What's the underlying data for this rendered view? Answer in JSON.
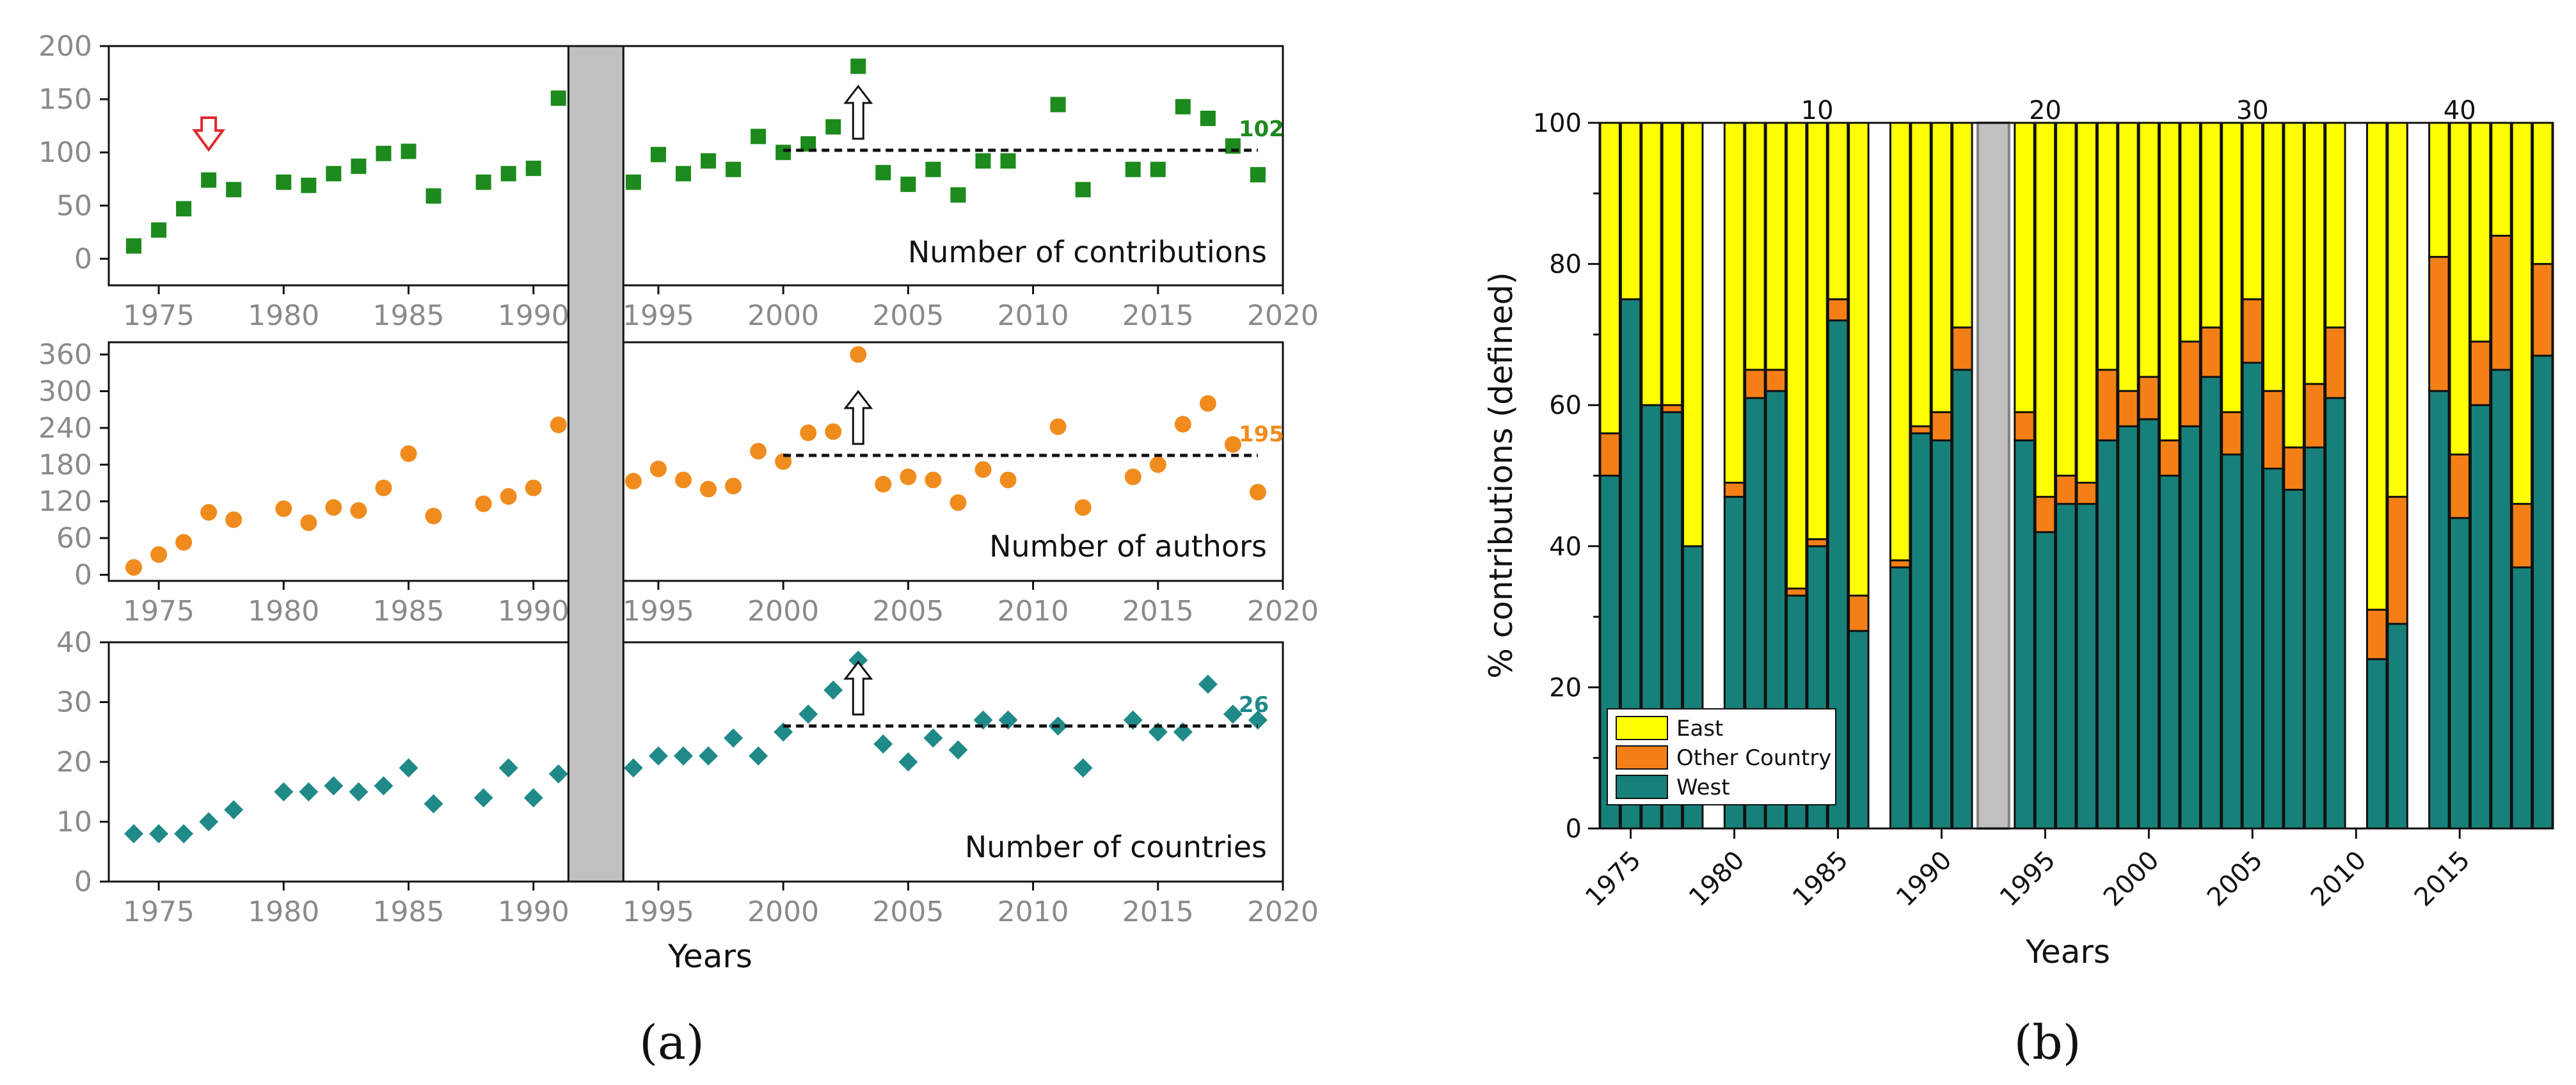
{
  "chart_data": [
    {
      "id": "a",
      "type": "scatter",
      "label": "(a)",
      "xlabel": "Years",
      "xlim": [
        1973,
        2020
      ],
      "xticks": [
        1975,
        1980,
        1985,
        1990,
        1995,
        2000,
        2005,
        2010,
        2015,
        2020
      ],
      "gap_band": [
        1991.4,
        1993.6
      ],
      "panels": [
        {
          "title": "Number of contributions",
          "ylim": [
            -25,
            200
          ],
          "yticks": [
            0,
            50,
            100,
            150,
            200
          ],
          "color": "#1c8a1c",
          "marker": "square",
          "reference": {
            "value": 102,
            "label": "102",
            "x_start": 2000,
            "x_end": 2019
          },
          "arrow_year": 2003,
          "down_arrow_year": 1977,
          "x": [
            1974,
            1975,
            1976,
            1977,
            1978,
            1980,
            1981,
            1982,
            1983,
            1984,
            1985,
            1986,
            1988,
            1989,
            1990,
            1991,
            1994,
            1995,
            1996,
            1997,
            1998,
            1999,
            2000,
            2001,
            2002,
            2003,
            2004,
            2005,
            2006,
            2007,
            2008,
            2009,
            2011,
            2012,
            2014,
            2015,
            2016,
            2017,
            2018,
            2019
          ],
          "y": [
            12,
            27,
            47,
            74,
            65,
            72,
            69,
            80,
            87,
            99,
            101,
            59,
            72,
            80,
            85,
            151,
            72,
            98,
            80,
            92,
            84,
            115,
            100,
            108,
            124,
            181,
            81,
            70,
            84,
            60,
            92,
            92,
            145,
            65,
            84,
            84,
            143,
            132,
            106,
            79
          ]
        },
        {
          "title": "Number of authors",
          "ylim": [
            -10,
            380
          ],
          "yticks": [
            0,
            60,
            120,
            180,
            240,
            300,
            360
          ],
          "color": "#f08c1e",
          "marker": "circle",
          "reference": {
            "value": 195,
            "label": "195",
            "x_start": 2000,
            "x_end": 2019
          },
          "arrow_year": 2003,
          "x": [
            1974,
            1975,
            1976,
            1977,
            1978,
            1980,
            1981,
            1982,
            1983,
            1984,
            1985,
            1986,
            1988,
            1989,
            1990,
            1991,
            1994,
            1995,
            1996,
            1997,
            1998,
            1999,
            2000,
            2001,
            2002,
            2003,
            2004,
            2005,
            2006,
            2007,
            2008,
            2009,
            2011,
            2012,
            2014,
            2015,
            2016,
            2017,
            2018,
            2019
          ],
          "y": [
            12,
            33,
            53,
            102,
            90,
            108,
            85,
            110,
            105,
            142,
            198,
            96,
            116,
            128,
            142,
            245,
            153,
            173,
            155,
            140,
            145,
            202,
            185,
            232,
            234,
            360,
            148,
            160,
            155,
            118,
            172,
            155,
            242,
            110,
            160,
            180,
            246,
            280,
            213,
            135
          ]
        },
        {
          "title": "Number of countries",
          "ylim": [
            0,
            40
          ],
          "yticks": [
            0,
            10,
            20,
            30,
            40
          ],
          "color": "#1f8a88",
          "marker": "diamond",
          "reference": {
            "value": 26,
            "label": "26",
            "x_start": 2000,
            "x_end": 2019
          },
          "arrow_year": 2003,
          "x": [
            1974,
            1975,
            1976,
            1977,
            1978,
            1980,
            1981,
            1982,
            1983,
            1984,
            1985,
            1986,
            1988,
            1989,
            1990,
            1991,
            1994,
            1995,
            1996,
            1997,
            1998,
            1999,
            2000,
            2001,
            2002,
            2003,
            2004,
            2005,
            2006,
            2007,
            2008,
            2009,
            2011,
            2012,
            2014,
            2015,
            2016,
            2017,
            2018,
            2019
          ],
          "y": [
            8,
            8,
            8,
            10,
            12,
            15,
            15,
            16,
            15,
            16,
            19,
            13,
            14,
            19,
            14,
            18,
            19,
            21,
            21,
            21,
            24,
            21,
            25,
            28,
            32,
            37,
            23,
            20,
            24,
            22,
            27,
            27,
            26,
            19,
            27,
            25,
            25,
            33,
            28,
            27
          ]
        }
      ]
    },
    {
      "id": "b",
      "type": "bar",
      "stacked": true,
      "label": "(b)",
      "xlabel": "Years",
      "ylabel": "% contributions (defined)",
      "ylim": [
        0,
        100
      ],
      "yticks": [
        0,
        20,
        40,
        60,
        80,
        100
      ],
      "xlim": [
        1973.5,
        2019.5
      ],
      "xticks": [
        1975,
        1980,
        1985,
        1990,
        1995,
        2000,
        2005,
        2010,
        2015
      ],
      "top_ticks": [
        {
          "label": "10",
          "year": 1984
        },
        {
          "label": "20",
          "year": 1995
        },
        {
          "label": "30",
          "year": 2005
        },
        {
          "label": "40",
          "year": 2015
        }
      ],
      "gap_band": [
        1991.5,
        1993.5
      ],
      "legend": {
        "position": "bottom-left",
        "entries": [
          "East",
          "Other Country",
          "West"
        ]
      },
      "series_colors": {
        "West": "#17807a",
        "Other Country": "#f57f17",
        "East": "#ffff00"
      },
      "years": [
        1974,
        1975,
        1976,
        1977,
        1978,
        1980,
        1981,
        1982,
        1983,
        1984,
        1985,
        1986,
        1988,
        1989,
        1990,
        1991,
        1994,
        1995,
        1996,
        1997,
        1998,
        1999,
        2000,
        2001,
        2002,
        2003,
        2004,
        2005,
        2006,
        2007,
        2008,
        2009,
        2011,
        2012,
        2014,
        2015,
        2016,
        2017,
        2018,
        2019
      ],
      "series": [
        {
          "name": "West",
          "values": [
            50,
            75,
            60,
            59,
            40,
            47,
            61,
            62,
            33,
            40,
            72,
            28,
            37,
            56,
            55,
            65,
            55,
            42,
            46,
            46,
            55,
            57,
            58,
            50,
            57,
            64,
            53,
            66,
            51,
            48,
            54,
            61,
            24,
            29,
            62,
            44,
            60,
            65,
            37,
            67
          ]
        },
        {
          "name": "Other Country",
          "values": [
            6,
            0,
            0,
            1,
            0,
            2,
            4,
            3,
            1,
            1,
            3,
            5,
            1,
            1,
            4,
            6,
            4,
            5,
            4,
            3,
            10,
            5,
            6,
            5,
            12,
            7,
            6,
            9,
            11,
            6,
            9,
            10,
            7,
            18,
            19,
            9,
            9,
            19,
            9,
            13
          ]
        },
        {
          "name": "East",
          "values": [
            44,
            25,
            40,
            40,
            60,
            51,
            35,
            35,
            66,
            59,
            25,
            67,
            62,
            43,
            41,
            29,
            41,
            53,
            50,
            51,
            35,
            38,
            36,
            45,
            31,
            29,
            41,
            25,
            38,
            46,
            37,
            29,
            69,
            53,
            19,
            47,
            31,
            16,
            54,
            20
          ]
        }
      ]
    }
  ]
}
